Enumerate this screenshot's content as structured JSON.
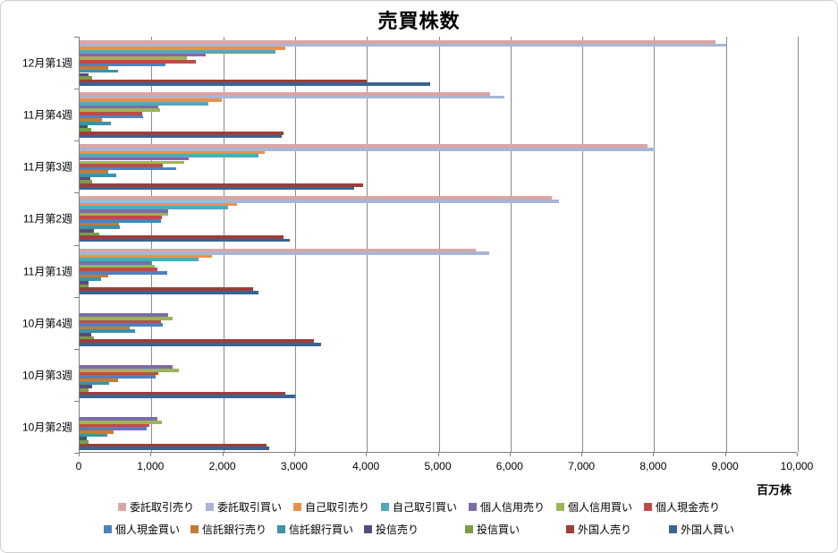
{
  "chart_data": {
    "type": "bar",
    "orientation": "horizontal",
    "title": "売買株数",
    "xlabel": "百万株",
    "xlim": [
      0,
      10000
    ],
    "grid": true,
    "legend_position": "bottom",
    "x_ticks": [
      {
        "value": 0,
        "label": "0"
      },
      {
        "value": 1000,
        "label": "1,000"
      },
      {
        "value": 2000,
        "label": "2,000"
      },
      {
        "value": 3000,
        "label": "3,000"
      },
      {
        "value": 4000,
        "label": "4,000"
      },
      {
        "value": 5000,
        "label": "5,000"
      },
      {
        "value": 6000,
        "label": "6,000"
      },
      {
        "value": 7000,
        "label": "7,000"
      },
      {
        "value": 8000,
        "label": "8,000"
      },
      {
        "value": 9000,
        "label": "9,000"
      },
      {
        "value": 10000,
        "label": "10,000"
      }
    ],
    "categories": [
      "12月第1週",
      "11月第4週",
      "11月第3週",
      "11月第2週",
      "11月第1週",
      "10月第4週",
      "10月第3週",
      "10月第2週"
    ],
    "series": [
      {
        "name": "委託取引売り",
        "color": "#DBA5A3",
        "values": [
          8850,
          5710,
          7910,
          6580,
          5520,
          0,
          0,
          0
        ]
      },
      {
        "name": "委託取引買い",
        "color": "#AAB5D5",
        "values": [
          9000,
          5920,
          8010,
          6680,
          5700,
          0,
          0,
          0
        ]
      },
      {
        "name": "自己取引売り",
        "color": "#E8914E",
        "values": [
          2870,
          1980,
          2580,
          2190,
          1840,
          0,
          0,
          0
        ]
      },
      {
        "name": "自己取引買い",
        "color": "#52A8BC",
        "values": [
          2730,
          1790,
          2490,
          2070,
          1660,
          0,
          0,
          0
        ]
      },
      {
        "name": "個人信用売り",
        "color": "#7D6BA8",
        "values": [
          1750,
          1100,
          1520,
          1230,
          1000,
          1230,
          1300,
          1080
        ]
      },
      {
        "name": "個人信用買い",
        "color": "#9DB458",
        "values": [
          1500,
          1120,
          1460,
          1230,
          1050,
          1300,
          1380,
          1140
        ]
      },
      {
        "name": "個人現金売り",
        "color": "#BE4B48",
        "values": [
          1620,
          870,
          1160,
          1140,
          1080,
          1130,
          1100,
          970
        ]
      },
      {
        "name": "個人現金買い",
        "color": "#5081BE",
        "values": [
          1190,
          890,
          1340,
          1130,
          1220,
          1160,
          1060,
          930
        ]
      },
      {
        "name": "信託銀行売り",
        "color": "#C27C35",
        "values": [
          400,
          310,
          400,
          550,
          400,
          700,
          530,
          470
        ]
      },
      {
        "name": "信託銀行買い",
        "color": "#3C93A8",
        "values": [
          530,
          430,
          510,
          560,
          300,
          770,
          410,
          390
        ]
      },
      {
        "name": "投信売り",
        "color": "#5A4A78",
        "values": [
          130,
          110,
          150,
          200,
          120,
          160,
          170,
          100
        ]
      },
      {
        "name": "投信買い",
        "color": "#7D9C45",
        "values": [
          170,
          160,
          180,
          270,
          120,
          200,
          120,
          130
        ]
      },
      {
        "name": "外国人売り",
        "color": "#9C3E3A",
        "values": [
          4000,
          2840,
          3950,
          2840,
          2410,
          3260,
          2860,
          2600
        ]
      },
      {
        "name": "外国人買い",
        "color": "#3A6490",
        "values": [
          4880,
          2820,
          3820,
          2930,
          2490,
          3360,
          3000,
          2640
        ]
      }
    ],
    "colors": {
      "gridline": "#8C8C8C",
      "axis": "#7F7F7F",
      "title_text": "#000000",
      "label_text": "#000000",
      "background": "#FFFFFF"
    }
  }
}
